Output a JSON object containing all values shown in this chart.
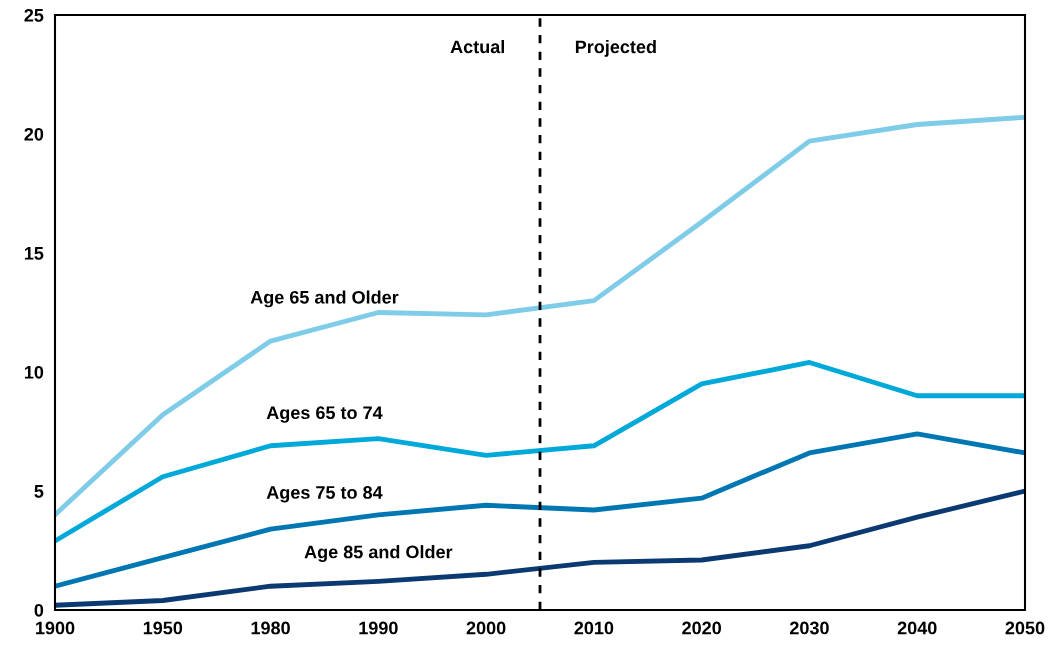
{
  "chart_data": {
    "type": "line",
    "categories": [
      "1900",
      "1950",
      "1980",
      "1990",
      "2000",
      "2010",
      "2020",
      "2030",
      "2040",
      "2050"
    ],
    "series": [
      {
        "name": "Age 65 and Older",
        "color": "#7fcce9",
        "values": [
          4.0,
          8.2,
          11.3,
          12.5,
          12.4,
          13.0,
          16.3,
          19.7,
          20.4,
          20.7
        ]
      },
      {
        "name": "Ages 65 to 74",
        "color": "#00a9d9",
        "values": [
          2.9,
          5.6,
          6.9,
          7.2,
          6.5,
          6.9,
          9.5,
          10.4,
          9.0,
          9.0
        ]
      },
      {
        "name": "Ages 75 to 84",
        "color": "#0077b3",
        "values": [
          1.0,
          2.2,
          3.4,
          4.0,
          4.4,
          4.2,
          4.7,
          6.6,
          7.4,
          6.6
        ]
      },
      {
        "name": "Age 85 and Older",
        "color": "#0b3a73",
        "values": [
          0.2,
          0.4,
          1.0,
          1.2,
          1.5,
          2.0,
          2.1,
          2.7,
          3.9,
          5.0
        ]
      }
    ],
    "ylim": [
      0,
      25
    ],
    "yticks": [
      0,
      5,
      10,
      15,
      20,
      25
    ],
    "annotations": [
      "Actual",
      "Projected"
    ],
    "grid": false,
    "legend": false,
    "marker": "none",
    "line_style": "solid"
  }
}
